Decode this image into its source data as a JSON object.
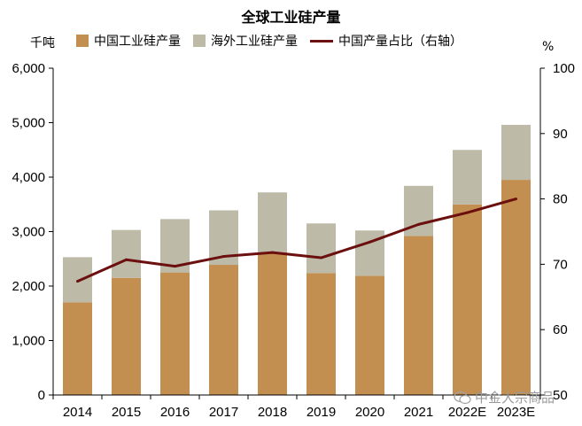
{
  "title": "全球工业硅产量",
  "unit_left": "千吨",
  "unit_right": "%",
  "legend": [
    {
      "label": "中国工业硅产量",
      "color": "#C38F51",
      "kind": "bar"
    },
    {
      "label": "海外工业硅产量",
      "color": "#BDBBA8",
      "kind": "bar"
    },
    {
      "label": "中国产量占比（右轴）",
      "color": "#6B0F0F",
      "kind": "line"
    }
  ],
  "watermark": "中金大宗商品",
  "chart_data": {
    "type": "bar",
    "stacked": true,
    "title": "全球工业硅产量",
    "categories": [
      "2014",
      "2015",
      "2016",
      "2017",
      "2018",
      "2019",
      "2020",
      "2021",
      "2022E",
      "2023E"
    ],
    "series": [
      {
        "name": "中国工业硅产量",
        "type": "bar",
        "axis": "left",
        "color": "#C38F51",
        "values": [
          1700,
          2150,
          2250,
          2390,
          2620,
          2240,
          2190,
          2920,
          3500,
          3950
        ]
      },
      {
        "name": "海外工业硅产量",
        "type": "bar",
        "axis": "left",
        "color": "#BDBBA8",
        "values": [
          830,
          880,
          980,
          1000,
          1100,
          910,
          830,
          920,
          1000,
          1010
        ]
      },
      {
        "name": "中国产量占比（右轴）",
        "type": "line",
        "axis": "right",
        "color": "#6B0F0F",
        "values": [
          67.4,
          70.7,
          69.7,
          71.2,
          71.8,
          71.0,
          73.4,
          76.1,
          77.9,
          80.0
        ]
      }
    ],
    "y_left": {
      "label": "千吨",
      "ylim": [
        0,
        6000
      ],
      "ticks": [
        0,
        1000,
        2000,
        3000,
        4000,
        5000,
        6000
      ],
      "tick_labels": [
        "0",
        "1,000",
        "2,000",
        "3,000",
        "4,000",
        "5,000",
        "6,000"
      ]
    },
    "y_right": {
      "label": "%",
      "ylim": [
        50,
        100
      ],
      "ticks": [
        50,
        60,
        70,
        80,
        90,
        100
      ],
      "tick_labels": [
        "50",
        "60",
        "70",
        "80",
        "90",
        "100"
      ]
    },
    "grid": false,
    "legend_position": "top"
  }
}
